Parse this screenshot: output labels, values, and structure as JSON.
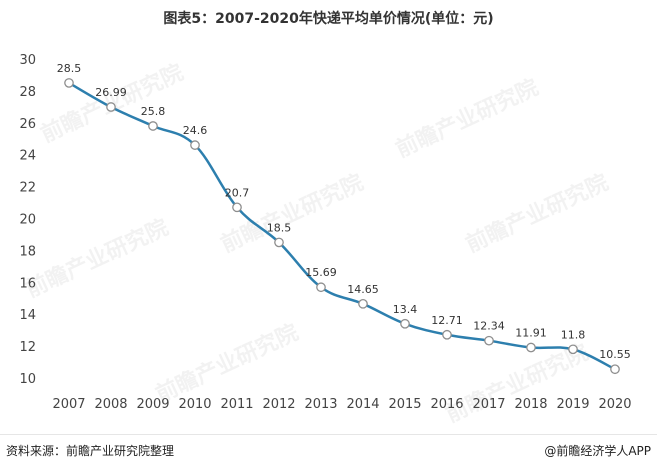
{
  "title": "图表5：2007-2020年快递平均单价情况(单位：元)",
  "footer": {
    "source": "资料来源：前瞻产业研究院整理",
    "credit": "@前瞻经济学人APP"
  },
  "watermark": "前瞻产业研究院",
  "colors": {
    "line": "#2d7fae",
    "marker_fill": "#ffffff",
    "marker_stroke": "#8e8e8e",
    "axis_text": "#444444",
    "label_text": "#333333"
  },
  "chart_data": {
    "type": "line",
    "title": "图表5：2007-2020年快递平均单价情况(单位：元)",
    "xlabel": "",
    "ylabel": "",
    "ylim": [
      10,
      30
    ],
    "yticks": [
      10,
      12,
      14,
      16,
      18,
      20,
      22,
      24,
      26,
      28,
      30
    ],
    "grid": false,
    "legend": "none",
    "categories": [
      "2007",
      "2008",
      "2009",
      "2010",
      "2011",
      "2012",
      "2013",
      "2014",
      "2015",
      "2016",
      "2017",
      "2018",
      "2019",
      "2020"
    ],
    "series": [
      {
        "values": [
          28.5,
          26.99,
          25.8,
          24.6,
          20.7,
          18.5,
          15.69,
          14.65,
          13.4,
          12.71,
          12.34,
          11.91,
          11.8,
          10.55
        ],
        "labels": [
          "28.5",
          "26.99",
          "25.8",
          "24.6",
          "20.7",
          "18.5",
          "15.69",
          "14.65",
          "13.4",
          "12.71",
          "12.34",
          "11.91",
          "11.8",
          "10.55"
        ]
      }
    ]
  }
}
